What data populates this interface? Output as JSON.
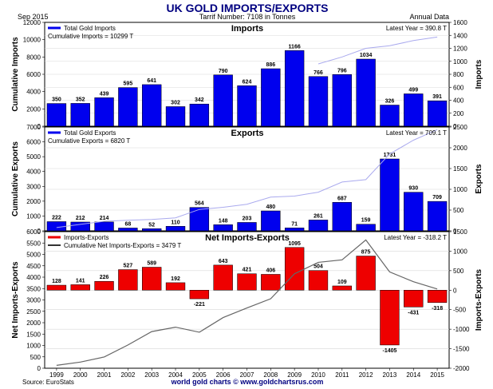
{
  "header": {
    "date": "Sep  2015",
    "title": "UK GOLD IMPORTS/EXPORTS",
    "subtitle": "Tarrif Number: 7108 in Tonnes",
    "data_freq": "Annual Data"
  },
  "footer": {
    "source": "Source: EuroStats",
    "credit": "world gold charts © www.goldchartsrus.com"
  },
  "colors": {
    "imports": "#0000ee",
    "exports": "#0000ee",
    "net": "#ee0000",
    "cumulative": "#aaaaee",
    "cumulative_net": "#666666",
    "title": "#000080"
  },
  "chart_data": [
    {
      "type": "bar",
      "title": "Imports",
      "categories": [
        "1999",
        "2000",
        "2001",
        "2002",
        "2003",
        "2004",
        "2005",
        "2006",
        "2007",
        "2008",
        "2009",
        "2010",
        "2011",
        "2012",
        "2013",
        "2014",
        "2015"
      ],
      "series": [
        {
          "name": "Total Gold Imports",
          "axis": "right",
          "values": [
            350,
            352,
            439,
            595,
            641,
            302,
            342,
            790,
            624,
            886,
            1166,
            766,
            796,
            1034,
            326,
            499,
            391
          ]
        },
        {
          "axis": "left",
          "type": "line",
          "values": [
            null,
            null,
            null,
            null,
            null,
            null,
            null,
            null,
            null,
            null,
            null,
            7200,
            8000,
            9000,
            9300,
            9900,
            10299
          ]
        }
      ],
      "legend": [
        "Total Gold Imports",
        "Cumulative Imports = 10299 T"
      ],
      "latest_text": "Latest Year = 390.8 T",
      "ylabel_left": "Cumulative Imports",
      "ylabel_right": "Imports",
      "ylim_left": [
        0,
        12000
      ],
      "yticks_left": [
        0,
        2000,
        4000,
        6000,
        8000,
        10000,
        12000
      ],
      "ylim_right": [
        0,
        1600
      ],
      "yticks_right": [
        0,
        200,
        400,
        600,
        800,
        1000,
        1200,
        1400,
        1600
      ],
      "grid": true
    },
    {
      "type": "bar",
      "title": "Exports",
      "categories": [
        "1999",
        "2000",
        "2001",
        "2002",
        "2003",
        "2004",
        "2005",
        "2006",
        "2007",
        "2008",
        "2009",
        "2010",
        "2011",
        "2012",
        "2013",
        "2014",
        "2015"
      ],
      "series": [
        {
          "name": "Total Gold Exports",
          "axis": "right",
          "values": [
            222,
            212,
            214,
            68,
            52,
            110,
            564,
            148,
            203,
            480,
            71,
            261,
            687,
            159,
            1731,
            930,
            709
          ]
        },
        {
          "axis": "left",
          "type": "line",
          "values": [
            222,
            434,
            648,
            716,
            768,
            878,
            1442,
            1590,
            1793,
            2273,
            2344,
            2605,
            3292,
            3451,
            5182,
            6112,
            6820
          ]
        }
      ],
      "legend": [
        "Total Gold Exports",
        "Cumulative Exports = 6820 T"
      ],
      "latest_text": "Latest Year = 709.1 T",
      "ylabel_left": "Cumulative Exports",
      "ylabel_right": "Exports",
      "ylim_left": [
        0,
        7000
      ],
      "yticks_left": [
        0,
        1000,
        2000,
        3000,
        4000,
        5000,
        6000,
        7000
      ],
      "ylim_right": [
        0,
        2500
      ],
      "yticks_right": [
        0,
        500,
        1000,
        1500,
        2000,
        2500
      ],
      "grid": true
    },
    {
      "type": "bar",
      "title": "Net Imports-Exports",
      "categories": [
        "1999",
        "2000",
        "2001",
        "2002",
        "2003",
        "2004",
        "2005",
        "2006",
        "2007",
        "2008",
        "2009",
        "2010",
        "2011",
        "2012",
        "2013",
        "2014",
        "2015"
      ],
      "series": [
        {
          "name": "Imports-Exports",
          "axis": "right",
          "values": [
            128,
            141,
            226,
            527,
            589,
            192,
            -221,
            643,
            421,
            406,
            1095,
            504,
            109,
            875,
            -1405,
            -431,
            -318
          ]
        },
        {
          "name": "Cumulative Net Imports-Exports",
          "axis": "left",
          "type": "line",
          "values": [
            128,
            269,
            495,
            1022,
            1611,
            1803,
            1582,
            2225,
            2646,
            3052,
            4147,
            4651,
            4760,
            5635,
            4230,
            3799,
            3481
          ]
        }
      ],
      "legend": [
        "Imports-Exports",
        "Cumulative Net Imports-Exports = 3479 T"
      ],
      "latest_text": "Latest Year = -318.2 T",
      "ylabel_left": "Net Imports-Exports",
      "ylabel_right": "Imports-Exports",
      "ylim_left": [
        0,
        6000
      ],
      "yticks_left": [
        0,
        500,
        1000,
        1500,
        2000,
        2500,
        3000,
        3500,
        4000,
        4500,
        5000,
        5500,
        6000
      ],
      "ylim_right": [
        -2000,
        1500
      ],
      "yticks_right": [
        -2000,
        -1500,
        -1000,
        -500,
        0,
        500,
        1000,
        1500
      ],
      "grid": true
    }
  ]
}
